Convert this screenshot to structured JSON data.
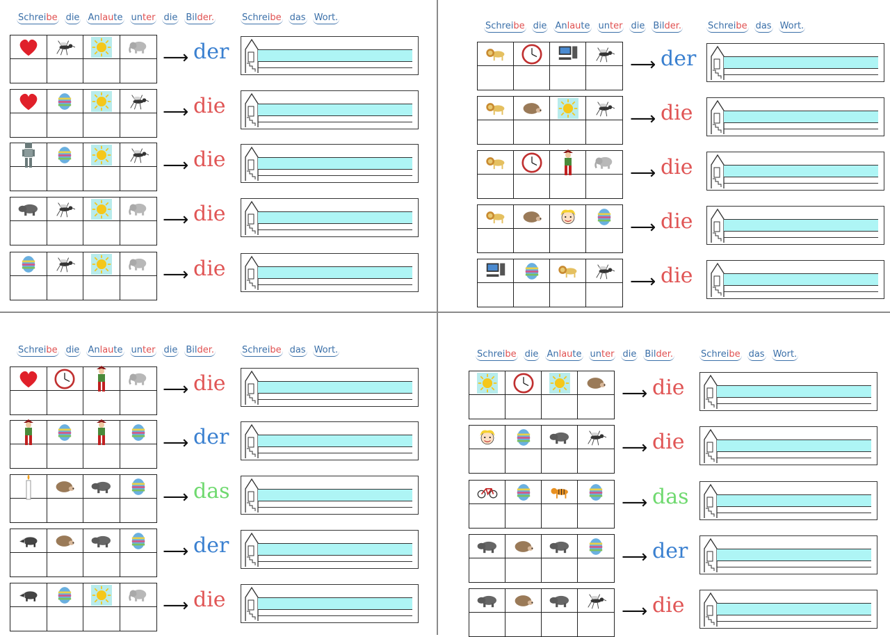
{
  "header_left": [
    {
      "t": "Schrei",
      "c": "b"
    },
    {
      "t": "be",
      "c": "r"
    },
    {
      "t": " ",
      "c": "sp"
    },
    {
      "t": "die",
      "c": "b",
      "sep": true
    },
    {
      "t": "An",
      "c": "b"
    },
    {
      "t": "lau",
      "c": "r"
    },
    {
      "t": "te",
      "c": "b",
      "sep": true
    },
    {
      "t": "un",
      "c": "b"
    },
    {
      "t": "ter",
      "c": "r",
      "sep": true
    },
    {
      "t": "die",
      "c": "b",
      "sep": true
    },
    {
      "t": "Bil",
      "c": "b"
    },
    {
      "t": "der.",
      "c": "r"
    }
  ],
  "header_left_text": "Schreibe die Anlaute unter die Bilder.",
  "header_right_text": "Schreibe das Wort.",
  "quadrants": [
    {
      "rows": [
        {
          "icons": [
            "heart-icon",
            "mosquito-icon",
            "sun-icon",
            "elephant-icon"
          ],
          "article": "der"
        },
        {
          "icons": [
            "heart-icon",
            "easter-egg-icon",
            "sun-icon",
            "mosquito-icon"
          ],
          "article": "die"
        },
        {
          "icons": [
            "robot-icon",
            "easter-egg-icon",
            "sun-icon",
            "mosquito-icon"
          ],
          "article": "die"
        },
        {
          "icons": [
            "hippo-icon",
            "mosquito-icon",
            "sun-icon",
            "elephant-icon"
          ],
          "article": "die"
        },
        {
          "icons": [
            "easter-egg-icon",
            "mosquito-icon",
            "sun-icon",
            "elephant-icon"
          ],
          "article": "die"
        }
      ]
    },
    {
      "rows": [
        {
          "icons": [
            "lion-icon",
            "clock-icon",
            "computer-icon",
            "mosquito-icon"
          ],
          "article": "der"
        },
        {
          "icons": [
            "lion-icon",
            "hedgehog-icon",
            "sun-icon",
            "mosquito-icon"
          ],
          "article": "die"
        },
        {
          "icons": [
            "lion-icon",
            "clock-icon",
            "pirate-icon",
            "elephant-icon"
          ],
          "article": "die"
        },
        {
          "icons": [
            "lion-icon",
            "hedgehog-icon",
            "girl-face-icon",
            "easter-egg-icon"
          ],
          "article": "die"
        },
        {
          "icons": [
            "computer-icon",
            "easter-egg-icon",
            "lion-icon",
            "mosquito-icon"
          ],
          "article": "die"
        }
      ]
    },
    {
      "rows": [
        {
          "icons": [
            "heart-icon",
            "clock-icon",
            "pirate-icon",
            "elephant-icon"
          ],
          "article": "die"
        },
        {
          "icons": [
            "pirate-icon",
            "easter-egg-icon",
            "pirate-icon",
            "easter-egg-icon"
          ],
          "article": "der"
        },
        {
          "icons": [
            "candle-icon",
            "hedgehog-icon",
            "hippo-icon",
            "easter-egg-icon"
          ],
          "article": "das"
        },
        {
          "icons": [
            "badger-icon",
            "hedgehog-icon",
            "hippo-icon",
            "easter-egg-icon"
          ],
          "article": "der"
        },
        {
          "icons": [
            "badger-icon",
            "easter-egg-icon",
            "sun-icon",
            "elephant-icon"
          ],
          "article": "die"
        }
      ]
    },
    {
      "rows": [
        {
          "icons": [
            "sun-icon",
            "clock-icon",
            "sun-icon",
            "hedgehog-icon"
          ],
          "article": "die"
        },
        {
          "icons": [
            "girl-face-icon",
            "easter-egg-icon",
            "hippo-icon",
            "mosquito-icon"
          ],
          "article": "die"
        },
        {
          "icons": [
            "bicycle-icon",
            "easter-egg-icon",
            "tiger-icon",
            "easter-egg-icon"
          ],
          "article": "das"
        },
        {
          "icons": [
            "hippo-icon",
            "hedgehog-icon",
            "hippo-icon",
            "easter-egg-icon"
          ],
          "article": "der"
        },
        {
          "icons": [
            "hippo-icon",
            "hedgehog-icon",
            "hippo-icon",
            "mosquito-icon"
          ],
          "article": "die"
        }
      ]
    }
  ],
  "arrow_glyph": "⟶",
  "colors": {
    "der": "#3a80d0",
    "die": "#e05555",
    "das": "#6fd96f",
    "band": "#aef5f5",
    "header": "#3a6fa8",
    "header_red": "#e05050"
  }
}
